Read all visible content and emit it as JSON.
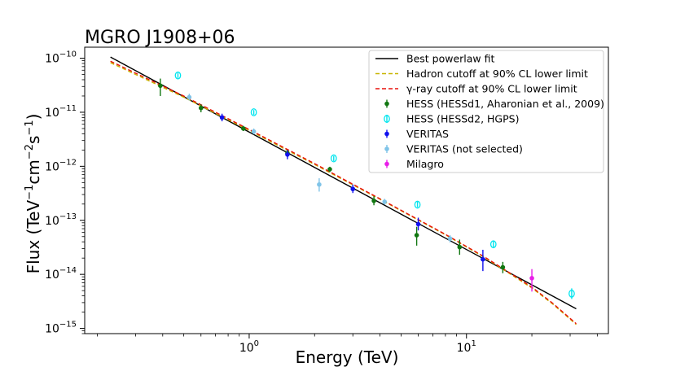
{
  "chart_data": {
    "type": "scatter",
    "title": "MGRO J1908+06",
    "xlabel": "Energy (TeV)",
    "ylabel_main": "Flux (TeV",
    "ylabel_sup1": "−1",
    "ylabel_cm": "cm",
    "ylabel_sup2": "−2",
    "ylabel_s": "s",
    "ylabel_sup3": "−1",
    "ylabel_close": ")",
    "x_scale": "log",
    "y_scale": "log",
    "xlim": [
      0.175,
      45
    ],
    "ylim": [
      8e-16,
      1.6e-10
    ],
    "x_ticks": [
      {
        "value": 1,
        "mantissa": "10",
        "exp": "0"
      },
      {
        "value": 10,
        "mantissa": "10",
        "exp": "1"
      }
    ],
    "y_ticks": [
      {
        "value": 1e-15,
        "mantissa": "10",
        "exp": "−15"
      },
      {
        "value": 1e-14,
        "mantissa": "10",
        "exp": "−14"
      },
      {
        "value": 1e-13,
        "mantissa": "10",
        "exp": "−13"
      },
      {
        "value": 1e-12,
        "mantissa": "10",
        "exp": "−12"
      },
      {
        "value": 1e-11,
        "mantissa": "10",
        "exp": "−11"
      },
      {
        "value": 1e-10,
        "mantissa": "10",
        "exp": "−10"
      }
    ],
    "legend_position": "top-right",
    "lines": [
      {
        "name": "Best powerlaw fit",
        "color": "#000000",
        "dash": "solid",
        "x": [
          0.23,
          32
        ],
        "y": [
          1.05e-10,
          2.3e-15
        ]
      },
      {
        "name": "Hadron cutoff at 90% CL lower limit",
        "color": "#c8b400",
        "dash": "dashed",
        "x": [
          0.23,
          0.5,
          1,
          2,
          4,
          8,
          12,
          16,
          20,
          25,
          32
        ],
        "y": [
          8.3e-11,
          1.9e-11,
          4.6e-12,
          1.08e-12,
          2.45e-13,
          5.4e-14,
          2.1e-14,
          1e-14,
          5.6e-15,
          2.8e-15,
          1.18e-15
        ]
      },
      {
        "name": "γ-ray cutoff at 90% CL lower limit",
        "color": "#e8100c",
        "dash": "dashed",
        "x": [
          0.23,
          0.5,
          1,
          2,
          4,
          8,
          12,
          16,
          20,
          25,
          32
        ],
        "y": [
          8.8e-11,
          2e-11,
          4.8e-12,
          1.12e-12,
          2.5e-13,
          5.5e-14,
          2.15e-14,
          1.03e-14,
          5.8e-15,
          2.9e-15,
          1.22e-15
        ]
      }
    ],
    "series": [
      {
        "name": "HESS (HESSd1, Aharonian et al., 2009)",
        "color": "#117711",
        "marker": "filled",
        "points": [
          {
            "x": 0.39,
            "y": 3.1e-11,
            "lo": 2e-11,
            "hi": 4.2e-11
          },
          {
            "x": 0.6,
            "y": 1.2e-11,
            "lo": 1e-11,
            "hi": 1.4e-11
          },
          {
            "x": 0.94,
            "y": 5e-12,
            "lo": 4.5e-12,
            "hi": 5.6e-12
          },
          {
            "x": 1.5,
            "y": 1.75e-12,
            "lo": 1.55e-12,
            "hi": 1.95e-12
          },
          {
            "x": 2.35,
            "y": 8.8e-13,
            "lo": 7.8e-13,
            "hi": 9.8e-13
          },
          {
            "x": 3.75,
            "y": 2.3e-13,
            "lo": 1.9e-13,
            "hi": 2.8e-13
          },
          {
            "x": 5.9,
            "y": 5.3e-14,
            "lo": 3.4e-14,
            "hi": 7.6e-14
          },
          {
            "x": 9.3,
            "y": 3.2e-14,
            "lo": 2.3e-14,
            "hi": 4.4e-14
          },
          {
            "x": 14.7,
            "y": 1.35e-14,
            "lo": 1.05e-14,
            "hi": 1.7e-14
          }
        ]
      },
      {
        "name": "HESS (HESSd2, HGPS)",
        "color": "#00e5ee",
        "marker": "hollow",
        "points": [
          {
            "x": 0.47,
            "y": 4.8e-11,
            "lo": 4.3e-11,
            "hi": 5.4e-11
          },
          {
            "x": 1.05,
            "y": 1e-11,
            "lo": 9e-12,
            "hi": 1.1e-11
          },
          {
            "x": 2.45,
            "y": 1.4e-12,
            "lo": 1.25e-12,
            "hi": 1.55e-12
          },
          {
            "x": 5.95,
            "y": 1.95e-13,
            "lo": 1.75e-13,
            "hi": 2.2e-13
          },
          {
            "x": 13.3,
            "y": 3.6e-14,
            "lo": 3.1e-14,
            "hi": 4.1e-14
          },
          {
            "x": 30.5,
            "y": 4.4e-15,
            "lo": 3.5e-15,
            "hi": 5.5e-15
          }
        ]
      },
      {
        "name": "VERITAS",
        "color": "#1010ee",
        "marker": "filled",
        "points": [
          {
            "x": 0.75,
            "y": 8e-12,
            "lo": 6.8e-12,
            "hi": 9.4e-12
          },
          {
            "x": 1.5,
            "y": 1.65e-12,
            "lo": 1.35e-12,
            "hi": 2e-12
          },
          {
            "x": 3.0,
            "y": 3.8e-13,
            "lo": 3.2e-13,
            "hi": 4.6e-13
          },
          {
            "x": 6.0,
            "y": 8.5e-14,
            "lo": 6.5e-14,
            "hi": 1.12e-13
          },
          {
            "x": 11.9,
            "y": 1.9e-14,
            "lo": 1.15e-14,
            "hi": 2.85e-14
          }
        ]
      },
      {
        "name": "VERITAS (not selected)",
        "color": "#80c4e8",
        "marker": "filled",
        "points": [
          {
            "x": 0.53,
            "y": 1.9e-11,
            "lo": 1.65e-11,
            "hi": 2.2e-11
          },
          {
            "x": 1.05,
            "y": 4.4e-12,
            "lo": 3.9e-12,
            "hi": 5e-12
          },
          {
            "x": 2.1,
            "y": 4.6e-13,
            "lo": 3.4e-13,
            "hi": 6e-13
          },
          {
            "x": 4.2,
            "y": 2.2e-13,
            "lo": 1.95e-13,
            "hi": 2.5e-13
          },
          {
            "x": 8.4,
            "y": 4.6e-14,
            "lo": 3.9e-14,
            "hi": 5.3e-14
          }
        ]
      },
      {
        "name": "Milagro",
        "color": "#e81ee8",
        "marker": "filled",
        "points": [
          {
            "x": 20,
            "y": 8.5e-15,
            "lo": 4.8e-15,
            "hi": 1.25e-14
          }
        ]
      }
    ],
    "legend_entries": [
      {
        "label": "Best powerlaw fit",
        "kind": "line",
        "color": "#000000",
        "dash": "solid"
      },
      {
        "label": "Hadron cutoff at 90% CL lower limit",
        "kind": "line",
        "color": "#c8b400",
        "dash": "dashed"
      },
      {
        "label": "γ-ray cutoff at 90% CL lower limit",
        "kind": "line",
        "color": "#e8100c",
        "dash": "dashed"
      },
      {
        "label": "HESS (HESSd1, Aharonian et al., 2009)",
        "kind": "marker",
        "color": "#117711",
        "marker": "filled"
      },
      {
        "label": "HESS (HESSd2, HGPS)",
        "kind": "marker",
        "color": "#00e5ee",
        "marker": "hollow"
      },
      {
        "label": "VERITAS",
        "kind": "marker",
        "color": "#1010ee",
        "marker": "filled"
      },
      {
        "label": "VERITAS (not selected)",
        "kind": "marker",
        "color": "#80c4e8",
        "marker": "filled"
      },
      {
        "label": "Milagro",
        "kind": "marker",
        "color": "#e81ee8",
        "marker": "filled"
      }
    ]
  }
}
